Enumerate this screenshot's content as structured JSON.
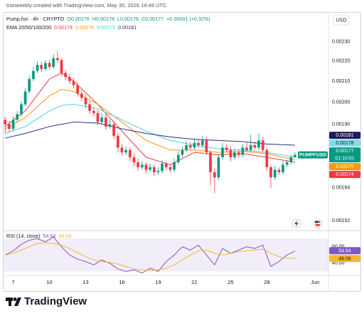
{
  "header": "tronweekly created with TradingView.com, May 30, 2026 14:49 UTC",
  "footer": "TradingView",
  "chart_data": [
    {
      "type": "candlestick",
      "legend_title": "Pump.fun · 4h · CRYPTO",
      "ohlc_legend": [
        "O0.00176",
        "H0.00178",
        "L0.00176",
        "C0.00177",
        "+0.00001 (+0.32%)"
      ],
      "ema_legend": "EMA 20/50/100/200",
      "currency": "USD",
      "up_color": "#089981",
      "down_color": "#f23645",
      "x": [
        6.33,
        6.67,
        7,
        7.33,
        7.67,
        8,
        8.33,
        8.67,
        9,
        9.33,
        9.67,
        10,
        10.33,
        10.67,
        11,
        11.33,
        11.67,
        12,
        12.33,
        12.67,
        13,
        13.33,
        13.67,
        14,
        14.33,
        14.67,
        15,
        15.33,
        15.67,
        16,
        16.33,
        16.67,
        17,
        17.33,
        17.67,
        18,
        18.33,
        18.67,
        19,
        19.33,
        19.67,
        20,
        20.33,
        20.67,
        21,
        21.33,
        21.67,
        22,
        22.33,
        22.67,
        23,
        23.33,
        23.67,
        24,
        24.33,
        24.67,
        25,
        25.33,
        25.67,
        26,
        26.33,
        26.67,
        27,
        27.33,
        27.67,
        28,
        28.33,
        28.67,
        29,
        29.33,
        29.67,
        30,
        30.33
      ],
      "open": [
        0.00192,
        0.0019,
        0.00188,
        0.00192,
        0.001945,
        0.00199,
        0.00205,
        0.00211,
        0.00215,
        0.00218,
        0.00216,
        0.00219,
        0.00217,
        0.002215,
        0.002205,
        0.00214,
        0.00212,
        0.0021,
        0.00208,
        0.00204,
        0.00202,
        0.00199,
        0.00196,
        0.00195,
        0.00191,
        0.00193,
        0.00189,
        0.0019,
        0.00185,
        0.0018,
        0.00178,
        0.00179,
        0.00176,
        0.00174,
        0.00172,
        0.00173,
        0.00171,
        0.00172,
        0.0017,
        0.001705,
        0.001735,
        0.00172,
        0.00171,
        0.00174,
        0.00177,
        0.00179,
        0.00181,
        0.0018,
        0.00182,
        0.00181,
        0.00183,
        0.00178,
        0.0017,
        0.00168,
        0.00176,
        0.0018,
        0.00179,
        0.00176,
        0.00178,
        0.00177,
        0.0018,
        0.00179,
        0.00181,
        0.0018,
        0.00183,
        0.00179,
        0.00172,
        0.00168,
        0.00171,
        0.0017,
        0.00173,
        0.00174,
        0.00176
      ],
      "high": [
        0.001935,
        0.001915,
        0.001935,
        0.00196,
        0.002005,
        0.002065,
        0.002125,
        0.00217,
        0.0022,
        0.002195,
        0.002205,
        0.002205,
        0.002235,
        0.00225,
        0.002215,
        0.002155,
        0.002135,
        0.002115,
        0.002095,
        0.002055,
        0.002035,
        0.002005,
        0.001975,
        0.001965,
        0.00195,
        0.001945,
        0.00192,
        0.00191,
        0.001865,
        0.001815,
        0.001805,
        0.0018,
        0.001775,
        0.001755,
        0.001745,
        0.00174,
        0.001735,
        0.00173,
        0.00172,
        0.00175,
        0.001745,
        0.00173,
        0.001755,
        0.001785,
        0.001805,
        0.00183,
        0.001825,
        0.00184,
        0.001835,
        0.00185,
        0.001845,
        0.00179,
        0.001715,
        0.001775,
        0.00182,
        0.001815,
        0.001805,
        0.001795,
        0.00179,
        0.001815,
        0.00182,
        0.001855,
        0.001825,
        0.00186,
        0.001845,
        0.0018,
        0.00173,
        0.001725,
        0.00172,
        0.001745,
        0.00175,
        0.00177,
        0.00178
      ],
      "low": [
        0.00186,
        0.001865,
        0.00187,
        0.00191,
        0.001935,
        0.00198,
        0.00204,
        0.0021,
        0.00214,
        0.002145,
        0.00215,
        0.002155,
        0.00216,
        0.00219,
        0.002125,
        0.002105,
        0.002085,
        0.002065,
        0.002025,
        0.002005,
        0.001975,
        0.001945,
        0.001935,
        0.001895,
        0.0019,
        0.001875,
        0.00188,
        0.001835,
        0.00178,
        0.001765,
        0.00177,
        0.001745,
        0.001725,
        0.001705,
        0.00171,
        0.001695,
        0.0017,
        0.001685,
        0.00169,
        0.001695,
        0.00171,
        0.0017,
        0.0017,
        0.00173,
        0.00176,
        0.00178,
        0.00179,
        0.00179,
        0.0018,
        0.0018,
        0.00177,
        0.00165,
        0.00162,
        0.00167,
        0.00175,
        0.00178,
        0.001745,
        0.00175,
        0.00176,
        0.00176,
        0.00178,
        0.00178,
        0.00179,
        0.00179,
        0.00178,
        0.001705,
        0.00164,
        0.00167,
        0.00169,
        0.00169,
        0.00172,
        0.00173,
        0.00176
      ],
      "close": [
        0.0019,
        0.00188,
        0.00192,
        0.001945,
        0.00199,
        0.00205,
        0.00211,
        0.00215,
        0.00218,
        0.00216,
        0.00219,
        0.00217,
        0.002215,
        0.002205,
        0.00214,
        0.00212,
        0.0021,
        0.00208,
        0.00204,
        0.00202,
        0.00199,
        0.00196,
        0.00195,
        0.00191,
        0.00193,
        0.00189,
        0.0019,
        0.00185,
        0.0018,
        0.00178,
        0.00179,
        0.00176,
        0.00174,
        0.00172,
        0.00173,
        0.00171,
        0.00172,
        0.0017,
        0.001705,
        0.001735,
        0.00172,
        0.00171,
        0.00174,
        0.00177,
        0.00179,
        0.00181,
        0.0018,
        0.00182,
        0.00181,
        0.00183,
        0.00178,
        0.0017,
        0.00168,
        0.00176,
        0.0018,
        0.00179,
        0.00176,
        0.00178,
        0.00177,
        0.0018,
        0.00179,
        0.00181,
        0.0018,
        0.00183,
        0.00179,
        0.00172,
        0.00168,
        0.00171,
        0.0017,
        0.00173,
        0.00174,
        0.00176,
        0.00177
      ],
      "series": [
        {
          "color": "#f23645",
          "x": [
            6.33,
            8,
            10,
            11,
            12,
            14,
            16,
            18,
            20,
            22,
            24,
            26,
            28,
            30.33
          ],
          "values": [
            0.00189,
            0.00196,
            0.00211,
            0.00214,
            0.0021,
            0.00199,
            0.00187,
            0.00176,
            0.00173,
            0.00178,
            0.00177,
            0.001775,
            0.00176,
            0.00174
          ]
        },
        {
          "color": "#ff9800",
          "x": [
            6.33,
            8,
            10,
            11,
            12,
            14,
            16,
            18,
            20,
            22,
            24,
            26,
            28,
            30.33
          ],
          "values": [
            0.00188,
            0.00193,
            0.00203,
            0.00206,
            0.00205,
            0.00199,
            0.00191,
            0.00183,
            0.00179,
            0.00179,
            0.00178,
            0.001785,
            0.001775,
            0.00175
          ]
        },
        {
          "color": "#4dd0e1",
          "x": [
            6.33,
            8,
            10,
            11,
            12,
            14,
            16,
            18,
            20,
            22,
            24,
            26,
            28,
            30.33
          ],
          "values": [
            0.00186,
            0.00189,
            0.00196,
            0.001985,
            0.00199,
            0.00197,
            0.00192,
            0.00187,
            0.00183,
            0.00181,
            0.001795,
            0.00179,
            0.00178,
            0.00176
          ]
        },
        {
          "color": "#2b2d84",
          "x": [
            6.33,
            8,
            10,
            11,
            12,
            14,
            16,
            18,
            20,
            22,
            24,
            26,
            28,
            30.33
          ],
          "values": [
            0.00184,
            0.00186,
            0.00189,
            0.0019,
            0.00191,
            0.001905,
            0.00188,
            0.00186,
            0.001845,
            0.001835,
            0.00183,
            0.001825,
            0.001815,
            0.00181
          ]
        }
      ],
      "price_labels": [
        {
          "value": 0.00181,
          "color": "#1e1b5c"
        },
        {
          "value": 0.00178,
          "color": "#80deea"
        },
        {
          "value": 0.00177,
          "color": "#089981",
          "tag": "PUMPFUSD",
          "countdown": "01:10:01"
        },
        {
          "value": 0.00175,
          "color": "#ff9800"
        },
        {
          "value": 0.00174,
          "color": "#f23645"
        }
      ],
      "log_scale": true,
      "xlim": [
        6.2,
        33.1
      ],
      "xticks": [
        7,
        10,
        13,
        16,
        19,
        22,
        25,
        28,
        {
          "value": 32,
          "label": "Jun"
        }
      ],
      "ylim": [
        0.00149,
        0.00246
      ],
      "yticks": [
        {
          "value": 0.0023,
          "label": "0.00230"
        },
        {
          "value": 0.0022,
          "label": "0.00220"
        },
        {
          "value": 0.0021,
          "label": "0.00210"
        },
        {
          "value": 0.002,
          "label": "0.00200"
        },
        {
          "value": 0.0019,
          "label": "0.00190"
        },
        0.00164,
        0.00152
      ]
    },
    {
      "type": "line",
      "title": "RSI (14, close)",
      "x": [
        6.33,
        7,
        7.67,
        8.33,
        9,
        9.67,
        10.33,
        11,
        11.67,
        12.33,
        13,
        13.67,
        14.33,
        15,
        15.67,
        16.33,
        17,
        17.67,
        18.33,
        19,
        19.67,
        20.33,
        21,
        21.67,
        22.33,
        23,
        23.67,
        24.33,
        25,
        25.67,
        26.33,
        27,
        27.67,
        28.33,
        29,
        29.67,
        30.33
      ],
      "series": [
        {
          "color": "#7e57c2",
          "values": [
            50,
            55,
            63,
            68,
            70,
            66,
            72,
            60,
            50,
            45,
            42,
            38,
            44,
            40,
            33,
            30,
            32,
            28,
            34,
            30,
            42,
            50,
            60,
            56,
            62,
            50,
            38,
            58,
            52,
            56,
            60,
            58,
            62,
            36,
            42,
            50,
            54.84
          ]
        },
        {
          "color": "#f5b82e",
          "values": [
            50,
            52,
            56,
            60,
            64,
            65,
            64,
            62,
            58,
            53,
            48,
            44,
            42,
            41,
            39,
            36,
            33,
            32,
            31,
            32,
            34,
            38,
            44,
            50,
            55,
            56,
            52,
            50,
            52,
            54,
            55,
            56,
            57,
            52,
            48,
            46,
            46.06
          ]
        }
      ],
      "band": [
        30,
        70
      ],
      "band_color": "#7e57c2",
      "xlim": [
        6.2,
        33.1
      ],
      "ylim": [
        26,
        78
      ],
      "yticks": [
        {
          "value": 60,
          "label": "60.00"
        },
        {
          "value": 40,
          "label": "40.00"
        }
      ]
    }
  ]
}
